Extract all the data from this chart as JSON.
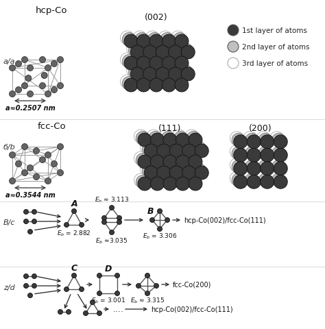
{
  "bg_color": "#ffffff",
  "title_hcp": "hcp-Co",
  "title_fcc": "fcc-Co",
  "label_hcp_a": "a≈0.2507 nm",
  "label_fcc_a": "a≈0.3544 nm",
  "section_label_aa": "a/a",
  "section_label_bb": "б/b",
  "section_label_vc": "B/c",
  "section_label_zd": "z/d",
  "miller_002": "(002)",
  "miller_111": "(111)",
  "miller_200": "(200)",
  "legend_labels": [
    "1st layer of atoms",
    "2nd layer of atoms",
    "3rd layer of atoms"
  ],
  "legend_colors": [
    "#3a3a3a",
    "#c0c0c0",
    "#ffffff"
  ],
  "result_row1": "hcp-Co(002)/fcc-Co(111)",
  "result_row2": "fcc-Co(200)",
  "result_row3": "hcp-Co(002)/fcc-Co(111)",
  "dark": "#3a3a3a",
  "grey": "#b8b8b8",
  "white": "#ffffff",
  "node_fc": "#3a3a3a",
  "line_color": "#555555",
  "atom_ec": "#222222",
  "lattice_lc": "#999999"
}
